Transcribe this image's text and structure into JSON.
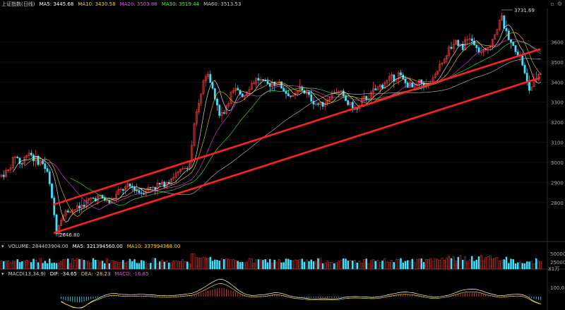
{
  "main_panel": {
    "title": "上证指数(日线)",
    "ma": [
      {
        "label": "MA5: 3445.68",
        "color": "#ffffff"
      },
      {
        "label": "MA10: 3430.58",
        "color": "#ffd600"
      },
      {
        "label": "MA20: 3503.88",
        "color": "#ff3cff"
      },
      {
        "label": "MA30: 3519.44",
        "color": "#3cff3c"
      },
      {
        "label": "MA60: 3513.53",
        "color": "#c8c8c8"
      }
    ],
    "y_ticks": [
      "3600",
      "3500",
      "3400",
      "3300",
      "3200",
      "3100",
      "3000",
      "2900",
      "2800"
    ],
    "high_label": "3731.69",
    "low_label": "2646.80",
    "window_icons": [
      "collapse-icon",
      "settings-icon"
    ]
  },
  "volume_panel": {
    "label": "VOLUME: 284403904.00",
    "ma5": {
      "label": "MA5: 321394560.00",
      "color": "#ffffff"
    },
    "ma10": {
      "label": "MA10: 337994368.00",
      "color": "#ffd600"
    },
    "y_ticks": [
      "50000",
      "25000"
    ],
    "unit": "X1万"
  },
  "macd_panel": {
    "label": "MACD(13,34,9)",
    "dif": {
      "label": "DIF: -34.65",
      "color": "#ffffff"
    },
    "dea": {
      "label": "DEA: -28.23",
      "color": "#ffd600"
    },
    "macd": {
      "label": "MACD: -16.85",
      "color": "#ff3cff"
    },
    "y_ticks": [
      "100.0"
    ]
  },
  "chart_data": {
    "type": "candlestick",
    "title": "上证指数(日线)",
    "ylim": [
      2620,
      3760
    ],
    "key_points": {
      "high": 3731.69,
      "low": 2646.8
    },
    "price_path": [
      [
        0,
        2930
      ],
      [
        12,
        2960
      ],
      [
        22,
        3040
      ],
      [
        30,
        2985
      ],
      [
        40,
        3060
      ],
      [
        50,
        3010
      ],
      [
        60,
        3000
      ],
      [
        68,
        2940
      ],
      [
        75,
        2780
      ],
      [
        80,
        2660
      ],
      [
        86,
        2720
      ],
      [
        95,
        2760
      ],
      [
        110,
        2770
      ],
      [
        125,
        2810
      ],
      [
        140,
        2830
      ],
      [
        155,
        2800
      ],
      [
        170,
        2860
      ],
      [
        185,
        2880
      ],
      [
        200,
        2850
      ],
      [
        215,
        2880
      ],
      [
        230,
        2890
      ],
      [
        245,
        2930
      ],
      [
        258,
        2960
      ],
      [
        268,
        2990
      ],
      [
        276,
        3200
      ],
      [
        282,
        3300
      ],
      [
        288,
        3400
      ],
      [
        294,
        3440
      ],
      [
        300,
        3380
      ],
      [
        308,
        3260
      ],
      [
        316,
        3240
      ],
      [
        325,
        3330
      ],
      [
        335,
        3360
      ],
      [
        345,
        3330
      ],
      [
        355,
        3390
      ],
      [
        365,
        3420
      ],
      [
        375,
        3380
      ],
      [
        385,
        3400
      ],
      [
        395,
        3390
      ],
      [
        405,
        3350
      ],
      [
        415,
        3320
      ],
      [
        425,
        3370
      ],
      [
        435,
        3340
      ],
      [
        445,
        3300
      ],
      [
        455,
        3280
      ],
      [
        465,
        3320
      ],
      [
        475,
        3360
      ],
      [
        485,
        3330
      ],
      [
        495,
        3280
      ],
      [
        505,
        3260
      ],
      [
        515,
        3310
      ],
      [
        525,
        3340
      ],
      [
        535,
        3370
      ],
      [
        545,
        3400
      ],
      [
        555,
        3420
      ],
      [
        565,
        3440
      ],
      [
        575,
        3390
      ],
      [
        585,
        3370
      ],
      [
        595,
        3400
      ],
      [
        605,
        3380
      ],
      [
        615,
        3420
      ],
      [
        625,
        3500
      ],
      [
        635,
        3560
      ],
      [
        645,
        3610
      ],
      [
        655,
        3580
      ],
      [
        665,
        3620
      ],
      [
        675,
        3560
      ],
      [
        685,
        3540
      ],
      [
        695,
        3600
      ],
      [
        703,
        3660
      ],
      [
        710,
        3731
      ],
      [
        716,
        3640
      ],
      [
        722,
        3600
      ],
      [
        730,
        3560
      ],
      [
        738,
        3520
      ],
      [
        744,
        3420
      ],
      [
        750,
        3360
      ],
      [
        756,
        3400
      ],
      [
        762,
        3440
      ],
      [
        766,
        3450
      ]
    ],
    "trend_lines": [
      {
        "name": "upper-channel",
        "from": [
          76,
          2790
        ],
        "to": [
          765,
          3565
        ],
        "color": "#ff2020"
      },
      {
        "name": "lower-channel",
        "from": [
          76,
          2648
        ],
        "to": [
          765,
          3422
        ],
        "color": "#ff2020"
      }
    ]
  }
}
